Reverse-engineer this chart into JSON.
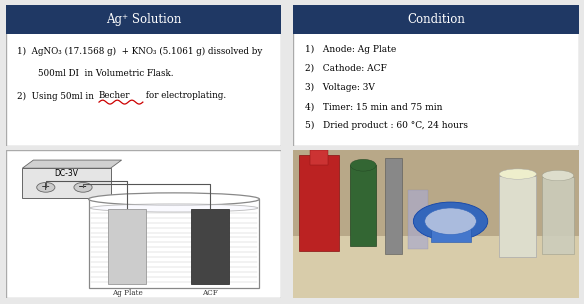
{
  "header_color": "#1F3864",
  "header_text_color": "#FFFFFF",
  "body_bg_color": "#FFFFFF",
  "border_color": "#AAAAAA",
  "left_title": "Ag⁺ Solution",
  "right_title": "Condition",
  "left_line1": "AgNO₃ (17.1568 g)  + KNO₃ (5.1061 g) dissolved by",
  "left_line2": "500ml DI  in Volumetric Flask.",
  "left_line3a": "Using 50ml in ",
  "left_line3b": "Becher",
  "left_line3c": " for electroplating.",
  "right_items": [
    "Anode: Ag Plate",
    "Cathode: ACF",
    "Voltage: 3V",
    "Timer: 15 min and 75 min",
    "Dried product : 60 °C, 24 hours"
  ],
  "label_ag": "Ag Plate",
  "label_acf": "ACF",
  "dc_label": "DC-3V",
  "figsize": [
    5.84,
    3.04
  ],
  "dpi": 100,
  "bg_color": "#E8E8E8"
}
